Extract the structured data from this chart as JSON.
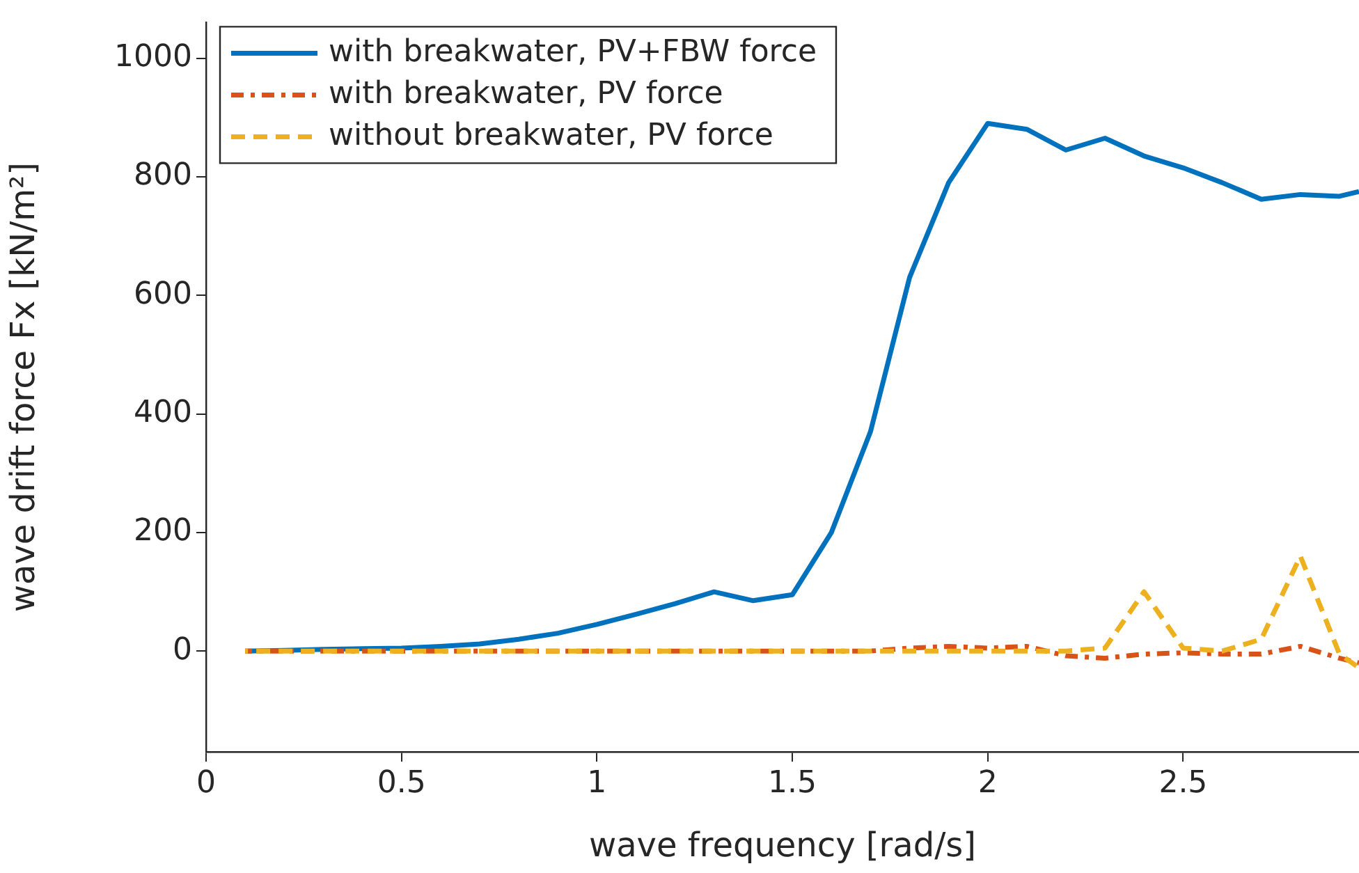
{
  "chart_data": {
    "type": "line",
    "xlabel": "wave frequency [rad/s]",
    "ylabel": "wave drift force Fx [kN/m²]",
    "x": [
      0.1,
      0.2,
      0.3,
      0.4,
      0.5,
      0.6,
      0.7,
      0.8,
      0.9,
      1.0,
      1.1,
      1.2,
      1.3,
      1.4,
      1.5,
      1.6,
      1.7,
      1.8,
      1.9,
      2.0,
      2.1,
      2.2,
      2.3,
      2.4,
      2.5,
      2.6,
      2.7,
      2.8,
      2.9,
      2.95
    ],
    "xlim": [
      0,
      2.95
    ],
    "xticks": [
      0,
      0.5,
      1,
      1.5,
      2,
      2.5
    ],
    "ylim": [
      -170,
      1060
    ],
    "yticks": [
      0,
      200,
      400,
      600,
      800,
      1000
    ],
    "grid": false,
    "legend": "top left",
    "marker": "none",
    "series": [
      {
        "name": "with breakwater, PV+FBW force",
        "color": "#0072bd",
        "line_style": "solid",
        "values": [
          0,
          1,
          3,
          4,
          5,
          8,
          12,
          20,
          30,
          45,
          62,
          80,
          100,
          85,
          95,
          200,
          370,
          630,
          790,
          890,
          880,
          845,
          865,
          835,
          815,
          790,
          762,
          770,
          767,
          775
        ]
      },
      {
        "name": "with breakwater, PV force",
        "color": "#d95319",
        "line_style": "dashdot",
        "values": [
          0,
          0,
          0,
          0,
          0,
          0,
          0,
          0,
          0,
          0,
          0,
          0,
          0,
          0,
          0,
          0,
          0,
          5,
          8,
          5,
          8,
          -8,
          -12,
          -5,
          -3,
          -5,
          -5,
          8,
          -12,
          -20
        ]
      },
      {
        "name": "without breakwater, PV force",
        "color": "#edb120",
        "line_style": "dashed",
        "values": [
          0,
          0,
          0,
          0,
          0,
          0,
          0,
          0,
          0,
          0,
          0,
          0,
          0,
          0,
          0,
          0,
          0,
          0,
          0,
          0,
          0,
          0,
          5,
          100,
          5,
          0,
          20,
          160,
          -5,
          -28
        ]
      }
    ]
  }
}
